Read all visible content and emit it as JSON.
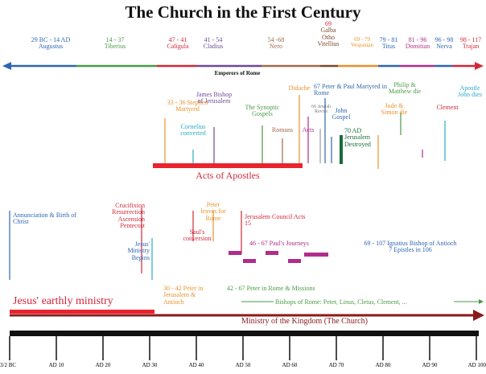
{
  "title": "The Church in the First Century",
  "colors": {
    "blue": "#2f67b1",
    "green": "#4a9a48",
    "red": "#d0283a",
    "purple": "#6f4a98",
    "tan": "#a06a4a",
    "orange": "#e8922c",
    "teal": "#2aa8c8",
    "magenta": "#b02d8a",
    "brown": "#7a4a2a",
    "darkgreen": "#1a6b3a",
    "black": "#111111"
  },
  "emperors": {
    "axis_label": "Emperors of Rome",
    "items": [
      {
        "dates": "29 BC - 14 AD",
        "name": "Augustus"
      },
      {
        "dates": "14 - 37",
        "name": "Tiberius"
      },
      {
        "dates": "47 - 41",
        "name": "Caligula"
      },
      {
        "dates": "41 - 54",
        "name": "Cladius"
      },
      {
        "dates": "54 -68",
        "name": "Nero"
      },
      {
        "dates": "69",
        "name": "Galba"
      },
      {
        "dates": "",
        "name": "Otho"
      },
      {
        "dates": "",
        "name": "Vitellius"
      },
      {
        "dates": "69 - 79",
        "name": "Vespasian"
      },
      {
        "dates": "79 - 81",
        "name": "Titus"
      },
      {
        "dates": "81 - 96",
        "name": "Domitian"
      },
      {
        "dates": "96 - 98",
        "name": "Nerva"
      },
      {
        "dates": "98 - 117",
        "name": "Trajan"
      }
    ]
  },
  "events_upper": {
    "stephen": "33 - 36 Stephen Martyred",
    "cornelius": "Cornelius converted",
    "james": "James Bishop of Jerusalem",
    "synoptic": "The Synoptic Gospels",
    "romans": "Romans",
    "didache": "Didache",
    "acts": "Acts",
    "jewish_revolt": "66 Jewish Revolt",
    "peter_paul": "67 Peter & Paul Martyred in Rome",
    "john_gospel": "John Gospel",
    "jerusalem_destroyed": "70 AD Jerusalem Destroyed",
    "jude_simon": "Jude & Simon die",
    "philip_matthew": "Philip & Matthew die",
    "clement": "Clement",
    "apostle_john": "Apostle John dies",
    "acts_of_apostles": "Acts of Apostles"
  },
  "events_lower": {
    "annunciation": "Annunciation & Birth of Christ",
    "crucifixion": "Crucifixion Resurrection Ascension Pentecost",
    "jesus_ministry": "Jesus' Ministry Begins",
    "saul": "Saul's conversion",
    "peter_leaves": "Peter leaves for Rome",
    "council": "Jerusalem Council Acts 15",
    "pauls_journeys": "46 - 67 Paul's Journeys",
    "ignatius": "69 - 107 Ignatius Bishop of Antioch 7 Epistles in 106",
    "peter_jerusalem": "30 - 42 Peter in Jerusalem & Antioch",
    "peter_rome": "42 - 67 Peter in Rome & Missions",
    "bishops": "Bishops of Rome: Peter, Linus, Cletus, Clement, ..."
  },
  "bands": {
    "jesus_ministry": "Jesus' earthly ministry",
    "kingdom": "Ministry of the Kingdom (The Church)"
  },
  "timeline_ticks": [
    "3/2 BC",
    "AD 10",
    "AD 20",
    "AD 30",
    "AD 40",
    "AD 50",
    "AD 60",
    "AD 70",
    "AD 80",
    "AD 90",
    "AD 100"
  ]
}
